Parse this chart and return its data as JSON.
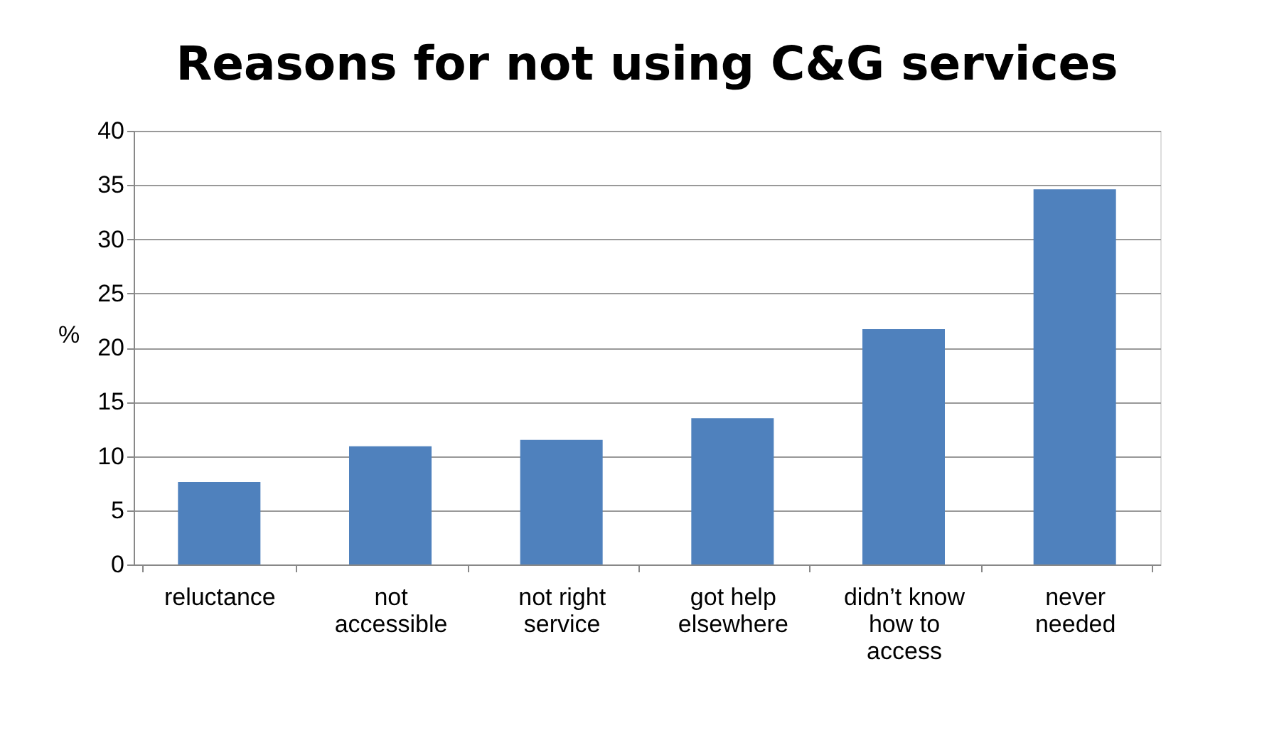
{
  "chart_data": {
    "type": "bar",
    "title": "Reasons for not using C&G services",
    "ylabel": "%",
    "categories": [
      "reluctance",
      "not accessible",
      "not  right service",
      "got help elsewhere",
      "didn’t know how to access",
      "never needed"
    ],
    "values": [
      7.6,
      10.9,
      11.5,
      13.5,
      21.7,
      34.6
    ],
    "color": "#4f81bd",
    "ylim": [
      0,
      40
    ],
    "yticks": [
      0,
      5,
      10,
      15,
      20,
      25,
      30,
      35,
      40
    ],
    "grid": "y"
  }
}
